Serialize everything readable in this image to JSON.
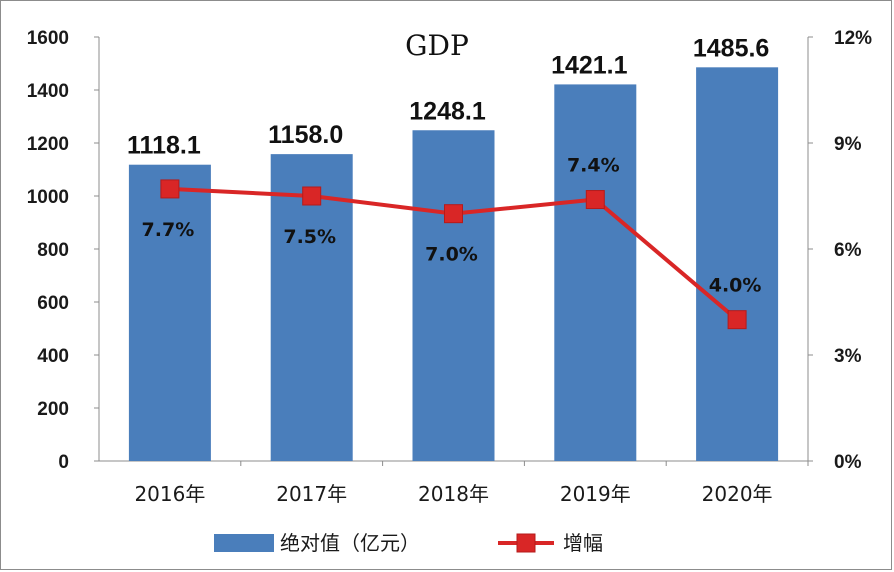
{
  "chart_data": {
    "type": "bar",
    "title": "GDP",
    "categories": [
      "2016年",
      "2017年",
      "2018年",
      "2019年",
      "2020年"
    ],
    "series": [
      {
        "name": "绝对值（亿元）",
        "type": "bar",
        "axis": "left",
        "color": "#4a7ebb",
        "values": [
          1118.1,
          1158.0,
          1248.1,
          1421.1,
          1485.6
        ],
        "labels": [
          "1118.1",
          "1158.0",
          "1248.1",
          "1421.1",
          "1485.6"
        ]
      },
      {
        "name": "增幅",
        "type": "line",
        "axis": "right",
        "color": "#d92626",
        "values": [
          7.7,
          7.5,
          7.0,
          7.4,
          4.0
        ],
        "labels": [
          "7.7%",
          "7.5%",
          "7.0%",
          "7.4%",
          "4.0%"
        ]
      }
    ],
    "y_left": {
      "ylim": [
        0,
        1600
      ],
      "ticks": [
        "0",
        "200",
        "400",
        "600",
        "800",
        "1000",
        "1200",
        "1400",
        "1600"
      ]
    },
    "y_right": {
      "ylim": [
        0,
        12
      ],
      "ticks": [
        "0%",
        "3%",
        "6%",
        "9%",
        "12%"
      ]
    },
    "grid": false,
    "legend": "bottom"
  }
}
